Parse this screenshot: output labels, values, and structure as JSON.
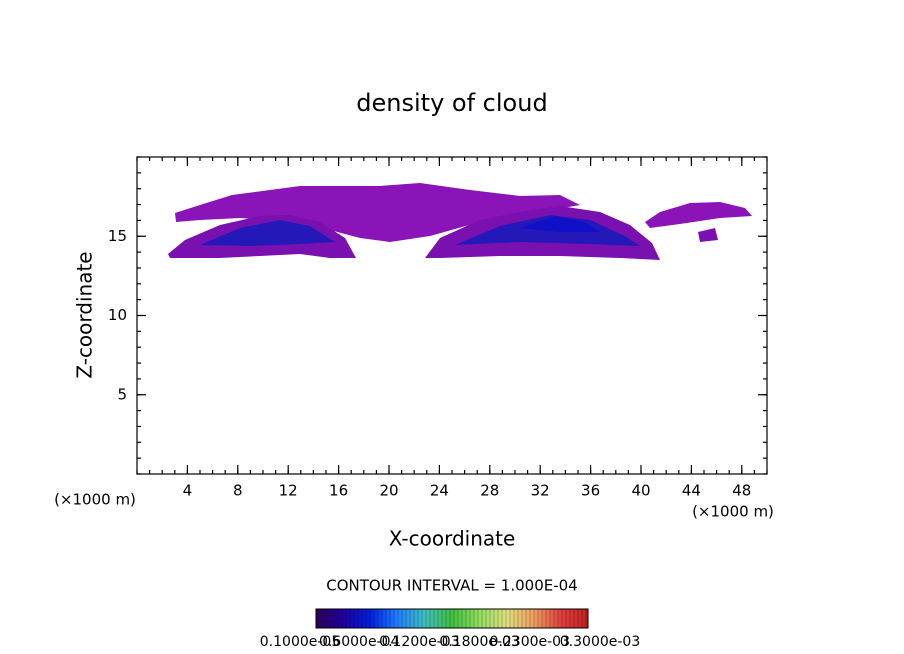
{
  "chart_data": {
    "type": "contour",
    "title": "density of cloud",
    "x_label": "X-coordinate",
    "y_label": "Z-coordinate",
    "x_unit": "(×1000 m)",
    "y_unit": "(×1000 m)",
    "xlim": [
      0,
      50
    ],
    "xticks": [
      4,
      8,
      12,
      16,
      20,
      24,
      28,
      32,
      36,
      40,
      44,
      48
    ],
    "ylim": [
      0,
      20
    ],
    "yticks": [
      5,
      10,
      15
    ],
    "contour_note": "CONTOUR INTERVAL = 1.000E-04",
    "colorbar": {
      "colors": [
        "#30005a",
        "#2000a0",
        "#0020e0",
        "#2080ff",
        "#40c0c0",
        "#40c040",
        "#90e060",
        "#e0e080",
        "#f0a060",
        "#e04040",
        "#c02020"
      ],
      "lim": [
        1e-06,
        0.0003
      ],
      "ticks": [
        {
          "value": 1e-06,
          "label": "0.1000e-05"
        },
        {
          "value": 6e-05,
          "label": "0.6000e-04"
        },
        {
          "value": 0.00012,
          "label": "0.1200e-03"
        },
        {
          "value": 0.00018,
          "label": "0.1800e-03"
        },
        {
          "value": 0.00023,
          "label": "0.2300e-03"
        },
        {
          "value": 0.0003,
          "label": "0.3000e-03"
        }
      ]
    }
  }
}
